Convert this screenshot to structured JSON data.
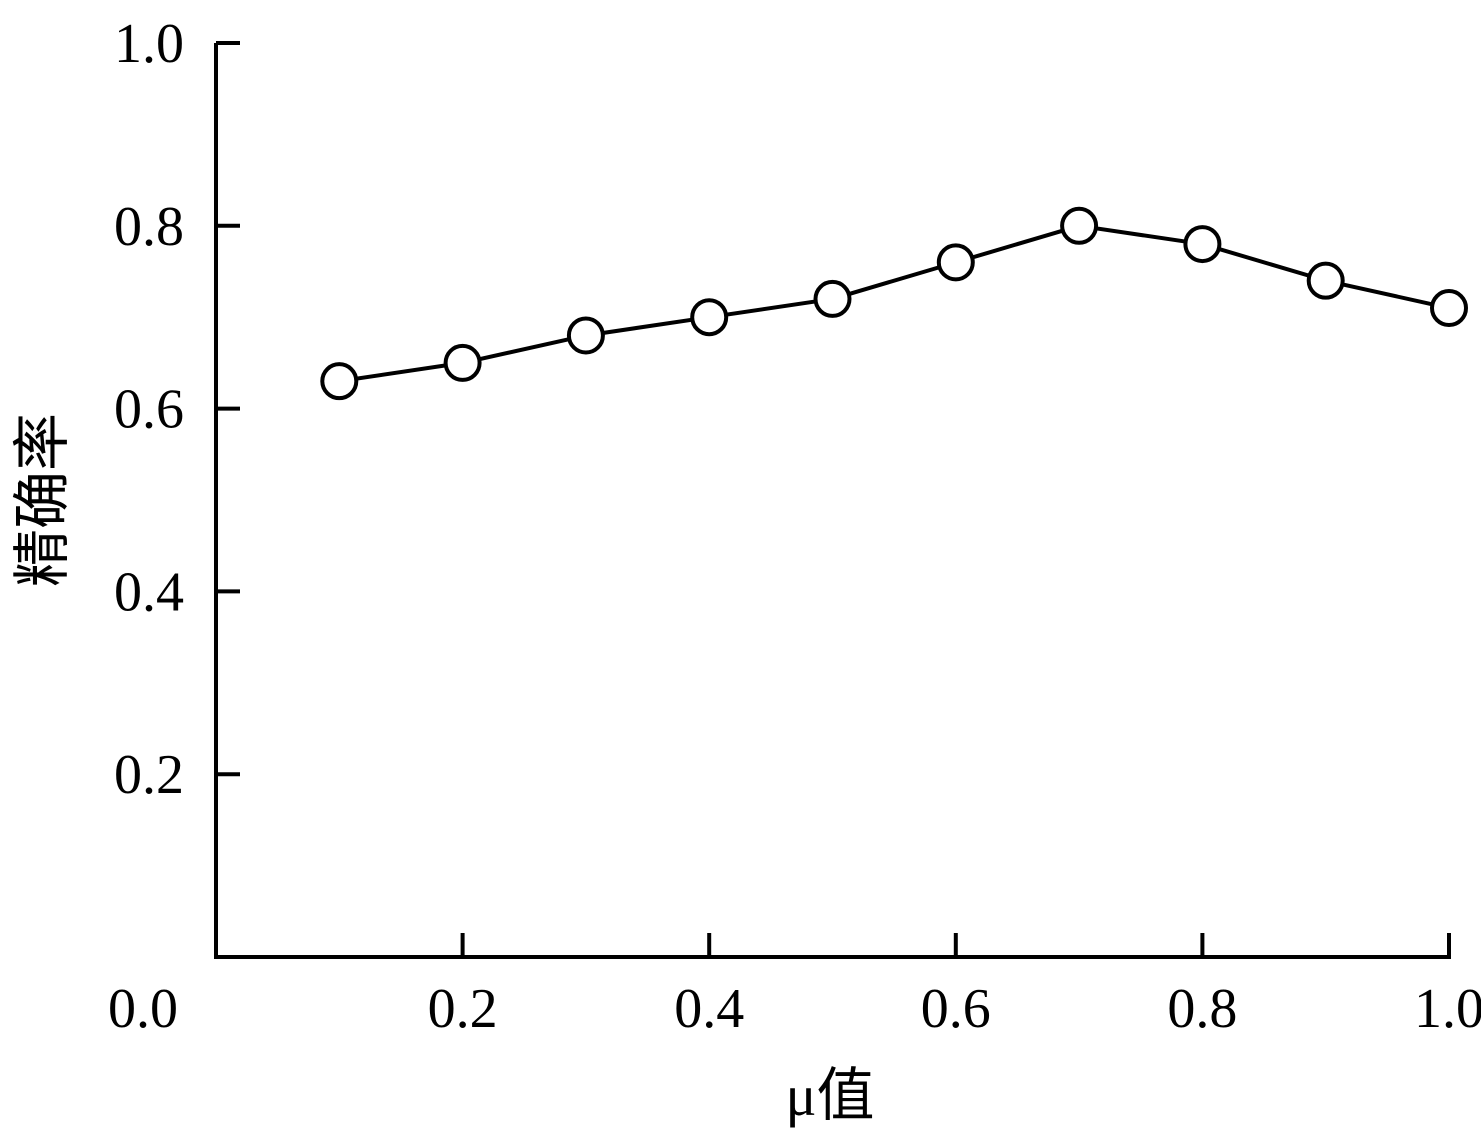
{
  "chart_data": {
    "type": "line",
    "xlabel": "μ值",
    "ylabel": "精确率",
    "xlim": [
      0.0,
      1.0
    ],
    "ylim": [
      0.0,
      1.0
    ],
    "x_ticks": [
      0.0,
      0.2,
      0.4,
      0.6,
      0.8,
      1.0
    ],
    "x_tick_labels": [
      "0.0",
      "0.2",
      "0.4",
      "0.6",
      "0.8",
      "1.0"
    ],
    "y_ticks": [
      0.2,
      0.4,
      0.6,
      0.8,
      1.0
    ],
    "y_tick_labels": [
      "0.2",
      "0.4",
      "0.6",
      "0.8",
      "1.0"
    ],
    "grid": false,
    "legend": "none",
    "marker": "open-circle",
    "line_color": "#000000",
    "series": [
      {
        "x": [
          0.1,
          0.2,
          0.3,
          0.4,
          0.5,
          0.6,
          0.7,
          0.8,
          0.9,
          1.0
        ],
        "values": [
          0.63,
          0.65,
          0.68,
          0.7,
          0.72,
          0.76,
          0.8,
          0.78,
          0.74,
          0.71
        ]
      }
    ]
  }
}
